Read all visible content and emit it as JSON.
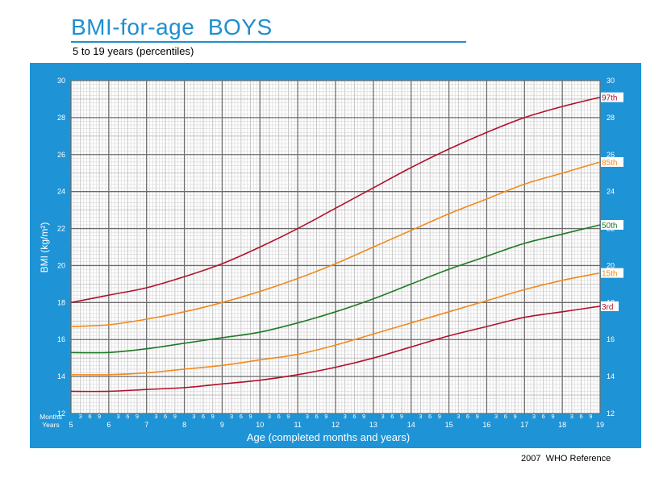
{
  "header": {
    "title": "BMI-for-age  BOYS",
    "subtitle": "5 to 19 years (percentiles)"
  },
  "footer": {
    "reference": "2007  WHO Reference"
  },
  "axis_labels": {
    "months": "Months",
    "years": "Years",
    "month_ticks": [
      "3",
      "6",
      "9"
    ]
  },
  "colors": {
    "frame": "#1e94d6",
    "title": "#1e8fd0",
    "p97": "#b0122a",
    "p85": "#f08a1c",
    "p50": "#1f7a26",
    "p15": "#f08a1c",
    "p3": "#b0122a"
  },
  "chart_data": {
    "type": "line",
    "title": "BMI-for-age  BOYS",
    "subtitle": "5 to 19 years (percentiles)",
    "xlabel": "Age (completed months and years)",
    "ylabel": "BMI (kg/m²)",
    "xlim": [
      5,
      19
    ],
    "ylim": [
      12,
      30
    ],
    "x_ticks": [
      5,
      6,
      7,
      8,
      9,
      10,
      11,
      12,
      13,
      14,
      15,
      16,
      17,
      18,
      19
    ],
    "y_ticks": [
      12,
      14,
      16,
      18,
      20,
      22,
      24,
      26,
      28,
      30
    ],
    "grid": true,
    "x": [
      5,
      6,
      7,
      8,
      9,
      10,
      11,
      12,
      13,
      14,
      15,
      16,
      17,
      18,
      19
    ],
    "series": [
      {
        "name": "97th",
        "color": "#b0122a",
        "values": [
          18.0,
          18.4,
          18.8,
          19.4,
          20.1,
          21.0,
          22.0,
          23.1,
          24.2,
          25.3,
          26.3,
          27.2,
          28.0,
          28.6,
          29.1
        ]
      },
      {
        "name": "85th",
        "color": "#f08a1c",
        "values": [
          16.7,
          16.8,
          17.1,
          17.5,
          18.0,
          18.6,
          19.3,
          20.1,
          21.0,
          21.9,
          22.8,
          23.6,
          24.4,
          25.0,
          25.6
        ]
      },
      {
        "name": "50th",
        "color": "#1f7a26",
        "values": [
          15.3,
          15.3,
          15.5,
          15.8,
          16.1,
          16.4,
          16.9,
          17.5,
          18.2,
          19.0,
          19.8,
          20.5,
          21.2,
          21.7,
          22.2
        ]
      },
      {
        "name": "15th",
        "color": "#f08a1c",
        "values": [
          14.1,
          14.1,
          14.2,
          14.4,
          14.6,
          14.9,
          15.2,
          15.7,
          16.3,
          16.9,
          17.5,
          18.1,
          18.7,
          19.2,
          19.6
        ]
      },
      {
        "name": "3rd",
        "color": "#b0122a",
        "values": [
          13.2,
          13.2,
          13.3,
          13.4,
          13.6,
          13.8,
          14.1,
          14.5,
          15.0,
          15.6,
          16.2,
          16.7,
          17.2,
          17.5,
          17.8
        ]
      }
    ]
  }
}
